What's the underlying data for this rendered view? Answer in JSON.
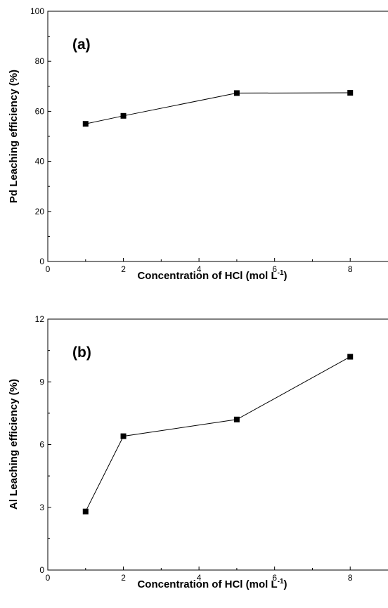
{
  "chart_data": [
    {
      "type": "line",
      "panel_label": "(a)",
      "xlabel": "Concentration of HCl (mol L",
      "xlabel_sup": "-1",
      "xlabel_end": ")",
      "ylabel": "Pd Leaching efficiency (%)",
      "xlim": [
        0,
        9
      ],
      "ylim": [
        0,
        100
      ],
      "xticks": [
        0,
        2,
        4,
        6,
        8
      ],
      "yticks": [
        0,
        20,
        40,
        60,
        80,
        100
      ],
      "x": [
        1,
        2,
        5,
        8
      ],
      "y": [
        55,
        58.2,
        67.3,
        67.4
      ],
      "marker": "square",
      "color": "#000000",
      "grid": false
    },
    {
      "type": "line",
      "panel_label": "(b)",
      "xlabel": "Concentration of HCl (mol L",
      "xlabel_sup": "-1",
      "xlabel_end": ")",
      "ylabel": "Al Leaching efficiency (%)",
      "xlim": [
        0,
        9
      ],
      "ylim": [
        0,
        12
      ],
      "xticks": [
        0,
        2,
        4,
        6,
        8
      ],
      "yticks": [
        0,
        3,
        6,
        9,
        12
      ],
      "x": [
        1,
        2,
        5,
        8
      ],
      "y": [
        2.8,
        6.4,
        7.2,
        10.2
      ],
      "marker": "square",
      "color": "#000000",
      "grid": false
    }
  ]
}
